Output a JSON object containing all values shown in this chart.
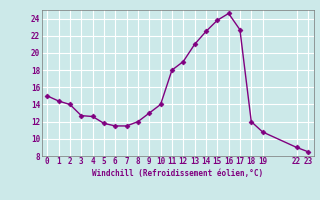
{
  "x": [
    0,
    1,
    2,
    3,
    4,
    5,
    6,
    7,
    8,
    9,
    10,
    11,
    12,
    13,
    14,
    15,
    16,
    17,
    18,
    19,
    22,
    23
  ],
  "y": [
    15.0,
    14.4,
    14.0,
    12.7,
    12.6,
    11.8,
    11.5,
    11.5,
    12.0,
    13.0,
    14.0,
    18.0,
    19.0,
    21.0,
    22.5,
    23.8,
    24.6,
    22.7,
    12.0,
    10.8,
    9.0,
    8.5
  ],
  "line_color": "#800080",
  "marker": "D",
  "marker_size": 2.5,
  "bg_color": "#cce9e9",
  "grid_color": "#ffffff",
  "xlabel": "Windchill (Refroidissement éolien,°C)",
  "xlim": [
    -0.5,
    23.5
  ],
  "ylim": [
    8,
    25
  ],
  "yticks": [
    8,
    10,
    12,
    14,
    16,
    18,
    20,
    22,
    24
  ],
  "xtick_positions": [
    0,
    1,
    2,
    3,
    4,
    5,
    6,
    7,
    8,
    9,
    10,
    11,
    12,
    13,
    14,
    15,
    16,
    17,
    18,
    19,
    22,
    23
  ],
  "xtick_labels": [
    "0",
    "1",
    "2",
    "3",
    "4",
    "5",
    "6",
    "7",
    "8",
    "9",
    "10",
    "11",
    "12",
    "13",
    "14",
    "15",
    "16",
    "17",
    "18",
    "19",
    "22",
    "23"
  ],
  "label_color": "#800080",
  "xlabel_fontsize": 5.5,
  "tick_fontsize": 5.5,
  "linewidth": 1.0
}
